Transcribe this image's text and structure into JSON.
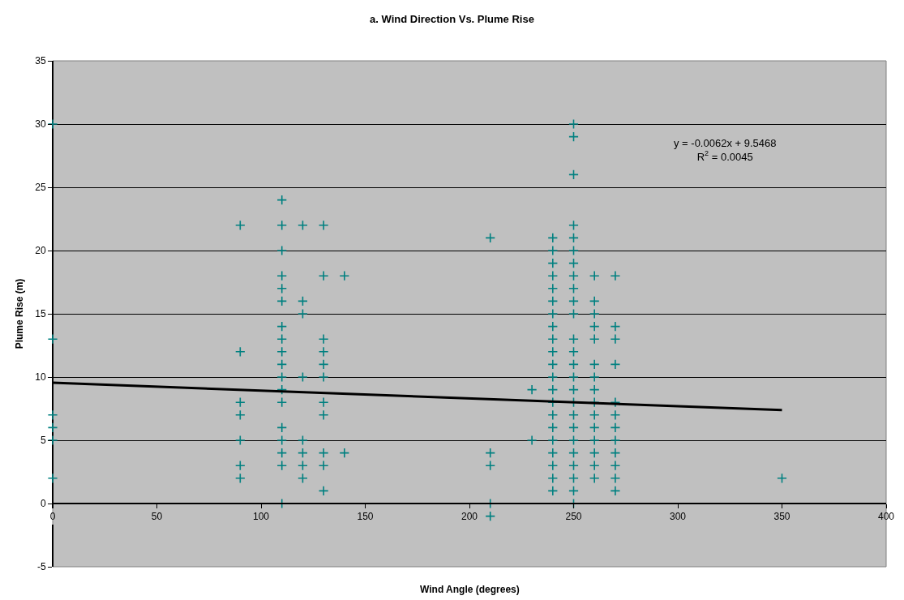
{
  "chart_data": {
    "type": "scatter",
    "title": "a. Wind Direction Vs. Plume Rise",
    "xlabel": "Wind Angle (degrees)",
    "ylabel": "Plume Rise (m)",
    "xlim": [
      0,
      400
    ],
    "xticks": [
      0,
      50,
      100,
      150,
      200,
      250,
      300,
      350,
      400
    ],
    "ylim": [
      -5,
      35
    ],
    "yticks": [
      -5,
      0,
      5,
      10,
      15,
      20,
      25,
      30,
      35
    ],
    "grid": "y",
    "annotations": [
      "y = -0.0062x + 9.5468\nR$^{2}$ = 0.0045"
    ],
    "series": [
      {
        "color": "#008080",
        "marker": "cross",
        "x": [
          0,
          0,
          0,
          0,
          0,
          0,
          90,
          90,
          90,
          90,
          90,
          90,
          90,
          110,
          110,
          110,
          110,
          110,
          110,
          110,
          110,
          110,
          110,
          110,
          110,
          110,
          110,
          110,
          110,
          110,
          110,
          120,
          120,
          120,
          120,
          120,
          120,
          120,
          120,
          130,
          130,
          130,
          130,
          130,
          130,
          130,
          130,
          130,
          130,
          130,
          140,
          140,
          210,
          210,
          210,
          210,
          210,
          230,
          230,
          240,
          240,
          240,
          240,
          240,
          240,
          240,
          240,
          240,
          240,
          240,
          240,
          240,
          240,
          240,
          240,
          240,
          240,
          240,
          240,
          240,
          250,
          250,
          250,
          250,
          250,
          250,
          250,
          250,
          250,
          250,
          250,
          250,
          250,
          250,
          250,
          250,
          250,
          250,
          250,
          250,
          250,
          250,
          250,
          250,
          250,
          260,
          260,
          260,
          260,
          260,
          260,
          260,
          260,
          260,
          260,
          260,
          260,
          260,
          260,
          260,
          270,
          270,
          270,
          270,
          270,
          270,
          270,
          270,
          270,
          270,
          270,
          270,
          350
        ],
        "values": [
          30,
          13,
          7,
          6,
          5,
          2,
          22,
          12,
          8,
          7,
          5,
          3,
          2,
          24,
          22,
          20,
          18,
          17,
          16,
          14,
          13,
          12,
          11,
          10,
          9,
          8,
          6,
          5,
          4,
          3,
          0,
          22,
          16,
          15,
          10,
          5,
          4,
          3,
          2,
          22,
          18,
          13,
          12,
          11,
          10,
          8,
          7,
          4,
          3,
          1,
          18,
          4,
          21,
          4,
          3,
          0,
          -1,
          9,
          5,
          21,
          20,
          19,
          18,
          17,
          16,
          15,
          14,
          13,
          12,
          11,
          10,
          9,
          8,
          7,
          6,
          5,
          4,
          3,
          2,
          1,
          30,
          29,
          26,
          22,
          21,
          20,
          19,
          18,
          17,
          16,
          15,
          13,
          12,
          11,
          10,
          9,
          8,
          7,
          6,
          5,
          4,
          3,
          2,
          1,
          0,
          18,
          16,
          15,
          14,
          13,
          11,
          10,
          9,
          8,
          7,
          6,
          5,
          4,
          3,
          2,
          18,
          14,
          13,
          11,
          8,
          7,
          6,
          5,
          4,
          3,
          2,
          1,
          2
        ]
      },
      {
        "type": "line",
        "color": "#000000",
        "line_style": "solid",
        "x": [
          0,
          350
        ],
        "values": [
          9.55,
          7.38
        ]
      }
    ]
  }
}
